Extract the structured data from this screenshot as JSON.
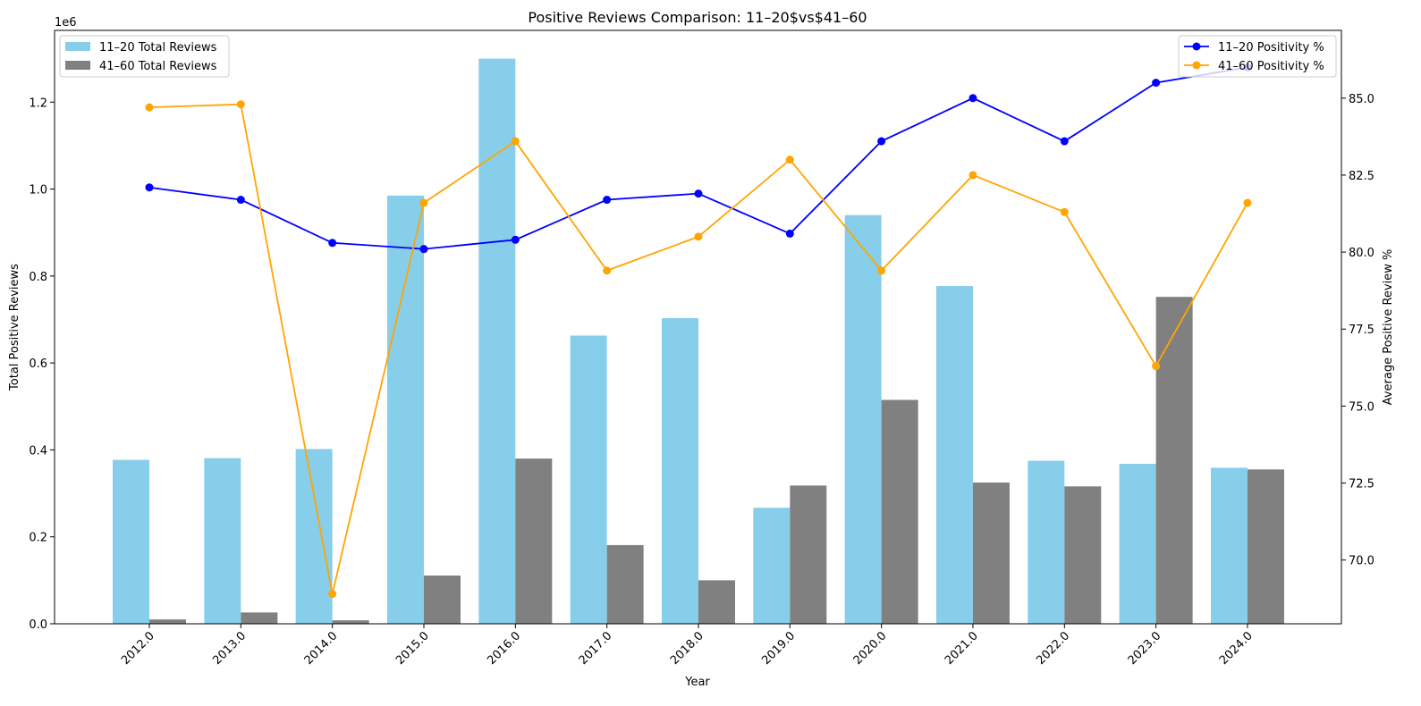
{
  "chart_data": {
    "type": "bar",
    "title": "Positive Reviews Comparison: 11–20$vs$41–60",
    "xlabel": "Year",
    "ylabel_left": "Total Positive Reviews",
    "ylabel_right": "Average Positive Review %",
    "y_offset_label": "1e6",
    "categories": [
      "2012.0",
      "2013.0",
      "2014.0",
      "2015.0",
      "2016.0",
      "2017.0",
      "2018.0",
      "2019.0",
      "2020.0",
      "2021.0",
      "2022.0",
      "2023.0",
      "2024.0"
    ],
    "left_ylim": [
      0,
      1.365
    ],
    "right_ylim": [
      67.93,
      87.2
    ],
    "left_ticks": [
      "0.0",
      "0.2",
      "0.4",
      "0.6",
      "0.8",
      "1.0",
      "1.2"
    ],
    "right_ticks": [
      "70.0",
      "72.5",
      "75.0",
      "77.5",
      "80.0",
      "82.5",
      "85.0"
    ],
    "bar_series": [
      {
        "name": "11–20 Total Reviews",
        "color": "#87ceeb",
        "values": [
          0.377,
          0.381,
          0.402,
          0.985,
          1.3,
          0.663,
          0.703,
          0.267,
          0.94,
          0.777,
          0.375,
          0.368,
          0.359
        ]
      },
      {
        "name": "41–60 Total Reviews",
        "color": "#808080",
        "values": [
          0.01,
          0.026,
          0.008,
          0.111,
          0.38,
          0.181,
          0.1,
          0.318,
          0.515,
          0.325,
          0.316,
          0.752,
          0.355
        ]
      }
    ],
    "line_series": [
      {
        "name": "11–20 Positivity %",
        "color": "#0000ff",
        "values": [
          82.1,
          81.7,
          80.3,
          80.1,
          80.4,
          81.7,
          81.9,
          80.6,
          83.6,
          85.0,
          83.6,
          85.5,
          86.0
        ]
      },
      {
        "name": "41–60 Positivity %",
        "color": "#ffa500",
        "values": [
          84.7,
          84.8,
          68.9,
          81.6,
          83.6,
          79.4,
          80.5,
          83.0,
          79.4,
          82.5,
          81.3,
          76.3,
          81.6
        ]
      }
    ],
    "legend_bars_placement": "top-left",
    "legend_lines_placement": "top-right",
    "grid": false
  }
}
